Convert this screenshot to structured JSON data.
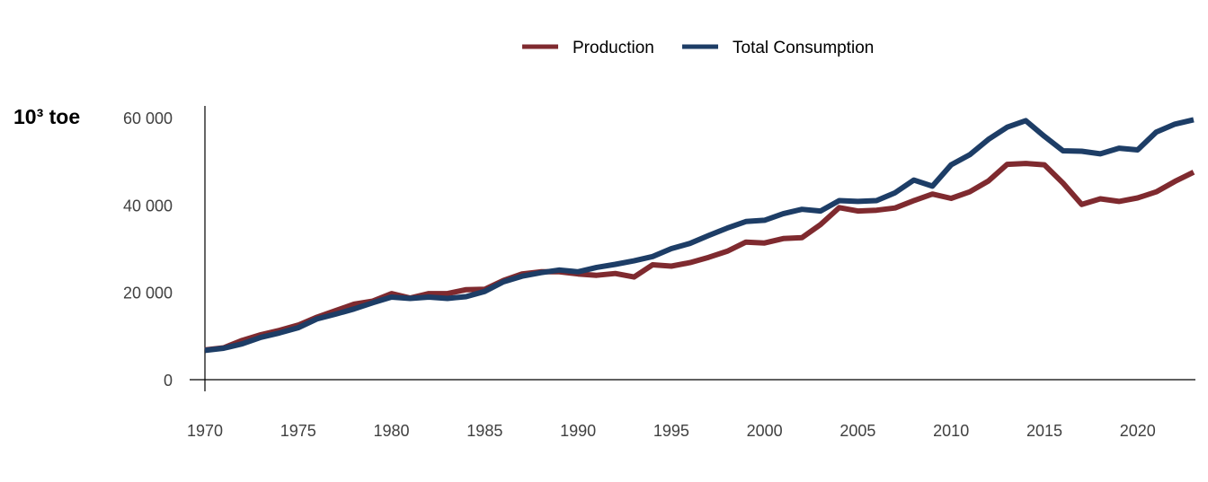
{
  "chart_data": {
    "type": "line",
    "title": "",
    "xlabel": "",
    "ylabel": "10³ toe",
    "xlim": [
      1970,
      2023
    ],
    "ylim": [
      0,
      60000
    ],
    "x_ticks": [
      1970,
      1975,
      1980,
      1985,
      1990,
      1995,
      2000,
      2005,
      2010,
      2015,
      2020
    ],
    "x_tick_labels": [
      "1970",
      "1975",
      "1980",
      "1985",
      "1990",
      "1995",
      "2000",
      "2005",
      "2010",
      "2015",
      "2020"
    ],
    "y_ticks": [
      0,
      20000,
      40000,
      60000
    ],
    "y_tick_labels": [
      "0",
      "20 000",
      "40 000",
      "60 000"
    ],
    "grid": false,
    "legend_position": "top-center",
    "x": [
      1970,
      1971,
      1972,
      1973,
      1974,
      1975,
      1976,
      1977,
      1978,
      1979,
      1980,
      1981,
      1982,
      1983,
      1984,
      1985,
      1986,
      1987,
      1988,
      1989,
      1990,
      1991,
      1992,
      1993,
      1994,
      1995,
      1996,
      1997,
      1998,
      1999,
      2000,
      2001,
      2002,
      2003,
      2004,
      2005,
      2006,
      2007,
      2008,
      2009,
      2010,
      2011,
      2012,
      2013,
      2014,
      2015,
      2016,
      2017,
      2018,
      2019,
      2020,
      2021,
      2022,
      2023
    ],
    "series": [
      {
        "name": "Production",
        "color": "#7f2a2f",
        "values": [
          6800,
          7300,
          9000,
          10300,
          11300,
          12500,
          14300,
          15800,
          17300,
          18000,
          19700,
          18700,
          19700,
          19700,
          20600,
          20700,
          22700,
          24200,
          24700,
          24700,
          24200,
          23900,
          24300,
          23500,
          26300,
          26000,
          26800,
          28000,
          29400,
          31500,
          31300,
          32300,
          32500,
          35500,
          39400,
          38600,
          38800,
          39300,
          41000,
          42500,
          41500,
          43000,
          45500,
          49300,
          49500,
          49200,
          45000,
          40100,
          41400,
          40800,
          41600,
          43000,
          45400,
          47500
        ]
      },
      {
        "name": "Total Consumption",
        "color": "#1d3d66",
        "values": [
          6700,
          7200,
          8200,
          9700,
          10700,
          11900,
          13900,
          15000,
          16200,
          17600,
          18900,
          18600,
          18900,
          18600,
          19000,
          20200,
          22400,
          23700,
          24500,
          25100,
          24700,
          25700,
          26400,
          27200,
          28200,
          30000,
          31200,
          33000,
          34700,
          36200,
          36500,
          38000,
          39000,
          38600,
          41000,
          40800,
          41000,
          42800,
          45700,
          44300,
          49200,
          51500,
          55000,
          57800,
          59300,
          55700,
          52400,
          52300,
          51700,
          53000,
          52600,
          56700,
          58500,
          59500
        ]
      }
    ]
  }
}
